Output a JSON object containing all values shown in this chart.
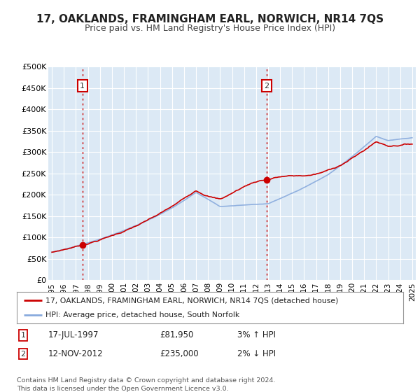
{
  "title": "17, OAKLANDS, FRAMINGHAM EARL, NORWICH, NR14 7QS",
  "subtitle": "Price paid vs. HM Land Registry's House Price Index (HPI)",
  "ylabel_ticks": [
    "£0",
    "£50K",
    "£100K",
    "£150K",
    "£200K",
    "£250K",
    "£300K",
    "£350K",
    "£400K",
    "£450K",
    "£500K"
  ],
  "ytick_values": [
    0,
    50000,
    100000,
    150000,
    200000,
    250000,
    300000,
    350000,
    400000,
    450000,
    500000
  ],
  "ylim": [
    0,
    500000
  ],
  "xlim_start": 1994.7,
  "xlim_end": 2025.3,
  "background_color": "#dce9f5",
  "outer_bg_color": "#ffffff",
  "grid_color": "#ffffff",
  "hpi_color": "#88aadd",
  "price_color": "#cc0000",
  "annotation_box_color": "#cc0000",
  "sale1_x": 1997.54,
  "sale1_y": 81950,
  "sale1_label": "1",
  "sale1_date": "17-JUL-1997",
  "sale1_price": "£81,950",
  "sale1_hpi": "3% ↑ HPI",
  "sale2_x": 2012.87,
  "sale2_y": 235000,
  "sale2_label": "2",
  "sale2_date": "12-NOV-2012",
  "sale2_price": "£235,000",
  "sale2_hpi": "2% ↓ HPI",
  "legend_line1": "17, OAKLANDS, FRAMINGHAM EARL, NORWICH, NR14 7QS (detached house)",
  "legend_line2": "HPI: Average price, detached house, South Norfolk",
  "footnote": "Contains HM Land Registry data © Crown copyright and database right 2024.\nThis data is licensed under the Open Government Licence v3.0.",
  "xtick_years": [
    1995,
    1996,
    1997,
    1998,
    1999,
    2000,
    2001,
    2002,
    2003,
    2004,
    2005,
    2006,
    2007,
    2008,
    2009,
    2010,
    2011,
    2012,
    2013,
    2014,
    2015,
    2016,
    2017,
    2018,
    2019,
    2020,
    2021,
    2022,
    2023,
    2024,
    2025
  ],
  "vline_color": "#cc0000",
  "vline_style": "--"
}
